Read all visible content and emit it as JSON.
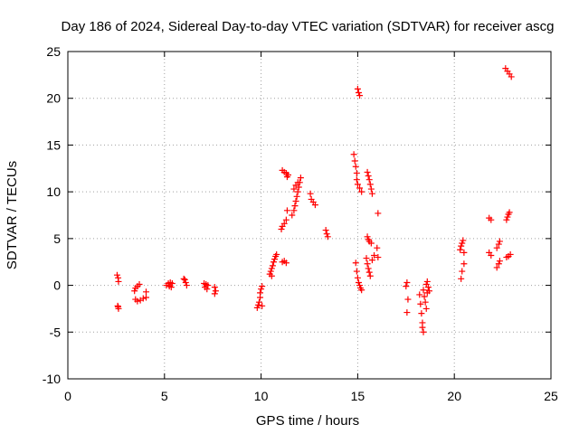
{
  "chart_data": {
    "type": "scatter",
    "title": "Day 186 of 2024, Sidereal Day-to-day VTEC variation (SDTVAR) for receiver ascg",
    "xlabel": "GPS time / hours",
    "ylabel": "SDTVAR / TECUs",
    "xlim": [
      0,
      25
    ],
    "ylim": [
      -10,
      25
    ],
    "xticks": [
      0,
      5,
      10,
      15,
      20,
      25
    ],
    "yticks": [
      -10,
      -5,
      0,
      5,
      10,
      15,
      20,
      25
    ],
    "grid": true,
    "marker": "+",
    "color": "#ff0000",
    "series": [
      {
        "name": "SDTVAR",
        "points": [
          [
            2.55,
            1.1
          ],
          [
            2.6,
            0.8
          ],
          [
            2.62,
            0.4
          ],
          [
            2.58,
            -2.2
          ],
          [
            2.62,
            -2.5
          ],
          [
            2.6,
            -2.3
          ],
          [
            3.45,
            -0.6
          ],
          [
            3.5,
            -0.3
          ],
          [
            3.6,
            -0.1
          ],
          [
            3.7,
            0.1
          ],
          [
            3.5,
            -1.5
          ],
          [
            3.6,
            -1.7
          ],
          [
            3.75,
            -1.6
          ],
          [
            3.9,
            -1.4
          ],
          [
            4.05,
            -0.7
          ],
          [
            4.05,
            -1.3
          ],
          [
            5.1,
            0.0
          ],
          [
            5.2,
            0.2
          ],
          [
            5.25,
            -0.1
          ],
          [
            5.3,
            0.3
          ],
          [
            5.4,
            0.2
          ],
          [
            5.35,
            -0.2
          ],
          [
            6.05,
            0.6
          ],
          [
            6.1,
            0.3
          ],
          [
            6.15,
            0.0
          ],
          [
            6.0,
            0.7
          ],
          [
            7.05,
            0.2
          ],
          [
            7.1,
            -0.2
          ],
          [
            7.15,
            0.1
          ],
          [
            7.2,
            -0.4
          ],
          [
            7.25,
            0.0
          ],
          [
            7.6,
            -0.2
          ],
          [
            7.65,
            -0.6
          ],
          [
            7.6,
            -0.9
          ],
          [
            9.8,
            -2.4
          ],
          [
            9.85,
            -2.1
          ],
          [
            9.9,
            -1.8
          ],
          [
            9.95,
            -1.3
          ],
          [
            9.95,
            -0.8
          ],
          [
            10.0,
            -0.4
          ],
          [
            10.05,
            -0.1
          ],
          [
            10.05,
            -2.2
          ],
          [
            10.45,
            1.2
          ],
          [
            10.5,
            1.5
          ],
          [
            10.55,
            1.8
          ],
          [
            10.6,
            2.1
          ],
          [
            10.65,
            2.5
          ],
          [
            10.7,
            2.8
          ],
          [
            10.75,
            3.1
          ],
          [
            10.8,
            3.3
          ],
          [
            10.55,
            1.0
          ],
          [
            11.1,
            2.5
          ],
          [
            11.2,
            2.6
          ],
          [
            11.3,
            2.4
          ],
          [
            11.05,
            6.0
          ],
          [
            11.1,
            6.3
          ],
          [
            11.2,
            6.6
          ],
          [
            11.3,
            7.0
          ],
          [
            11.35,
            8.0
          ],
          [
            11.1,
            12.3
          ],
          [
            11.2,
            12.1
          ],
          [
            11.3,
            12.0
          ],
          [
            11.35,
            11.6
          ],
          [
            11.4,
            11.8
          ],
          [
            11.6,
            7.5
          ],
          [
            11.7,
            8.0
          ],
          [
            11.75,
            8.5
          ],
          [
            11.8,
            9.0
          ],
          [
            11.85,
            9.5
          ],
          [
            11.9,
            10.0
          ],
          [
            11.95,
            10.5
          ],
          [
            12.0,
            11.0
          ],
          [
            12.05,
            11.5
          ],
          [
            11.7,
            10.3
          ],
          [
            11.8,
            10.7
          ],
          [
            11.9,
            11.0
          ],
          [
            12.55,
            9.8
          ],
          [
            12.6,
            9.2
          ],
          [
            12.7,
            8.9
          ],
          [
            12.8,
            8.6
          ],
          [
            13.35,
            5.9
          ],
          [
            13.4,
            5.5
          ],
          [
            13.45,
            5.2
          ],
          [
            14.8,
            14.0
          ],
          [
            14.85,
            13.3
          ],
          [
            14.9,
            12.7
          ],
          [
            14.95,
            12.0
          ],
          [
            14.95,
            11.3
          ],
          [
            15.0,
            10.8
          ],
          [
            15.1,
            10.4
          ],
          [
            15.2,
            10.0
          ],
          [
            14.9,
            2.4
          ],
          [
            14.95,
            1.5
          ],
          [
            15.0,
            0.8
          ],
          [
            15.05,
            0.3
          ],
          [
            15.1,
            0.0
          ],
          [
            15.15,
            -0.3
          ],
          [
            15.2,
            -0.5
          ],
          [
            15.0,
            21.0
          ],
          [
            15.05,
            20.6
          ],
          [
            15.1,
            20.3
          ],
          [
            15.5,
            12.1
          ],
          [
            15.55,
            11.7
          ],
          [
            15.6,
            11.3
          ],
          [
            15.65,
            10.8
          ],
          [
            15.7,
            10.3
          ],
          [
            15.75,
            9.8
          ],
          [
            15.5,
            5.2
          ],
          [
            15.55,
            4.9
          ],
          [
            15.6,
            4.7
          ],
          [
            15.7,
            4.5
          ],
          [
            15.45,
            2.9
          ],
          [
            15.5,
            2.3
          ],
          [
            15.55,
            1.8
          ],
          [
            15.6,
            1.4
          ],
          [
            15.65,
            1.0
          ],
          [
            15.75,
            2.7
          ],
          [
            15.85,
            3.2
          ],
          [
            16.0,
            4.0
          ],
          [
            16.05,
            3.0
          ],
          [
            16.05,
            7.7
          ],
          [
            17.5,
            -0.1
          ],
          [
            17.55,
            0.3
          ],
          [
            17.6,
            -1.5
          ],
          [
            17.55,
            -2.9
          ],
          [
            18.2,
            -1.0
          ],
          [
            18.25,
            -2.0
          ],
          [
            18.3,
            -3.0
          ],
          [
            18.35,
            -4.0
          ],
          [
            18.4,
            -5.0
          ],
          [
            18.35,
            -4.5
          ],
          [
            18.4,
            -0.5
          ],
          [
            18.45,
            -1.2
          ],
          [
            18.5,
            -1.8
          ],
          [
            18.55,
            -2.5
          ],
          [
            18.6,
            -0.8
          ],
          [
            18.6,
            0.4
          ],
          [
            18.65,
            -0.2
          ],
          [
            18.7,
            -0.6
          ],
          [
            18.55,
            0.1
          ],
          [
            20.3,
            3.8
          ],
          [
            20.35,
            4.2
          ],
          [
            20.4,
            4.5
          ],
          [
            20.45,
            4.8
          ],
          [
            20.5,
            3.5
          ],
          [
            20.35,
            0.7
          ],
          [
            20.4,
            1.5
          ],
          [
            20.5,
            2.3
          ],
          [
            21.8,
            7.2
          ],
          [
            21.9,
            7.0
          ],
          [
            21.8,
            3.5
          ],
          [
            21.9,
            3.2
          ],
          [
            22.2,
            4.0
          ],
          [
            22.3,
            4.4
          ],
          [
            22.35,
            4.7
          ],
          [
            22.2,
            1.9
          ],
          [
            22.3,
            2.3
          ],
          [
            22.35,
            2.6
          ],
          [
            22.7,
            7.0
          ],
          [
            22.75,
            7.3
          ],
          [
            22.8,
            7.6
          ],
          [
            22.85,
            7.8
          ],
          [
            22.7,
            3.0
          ],
          [
            22.8,
            3.1
          ],
          [
            22.9,
            3.3
          ],
          [
            22.65,
            23.2
          ],
          [
            22.75,
            22.9
          ],
          [
            22.85,
            22.6
          ],
          [
            22.95,
            22.3
          ]
        ]
      }
    ]
  }
}
